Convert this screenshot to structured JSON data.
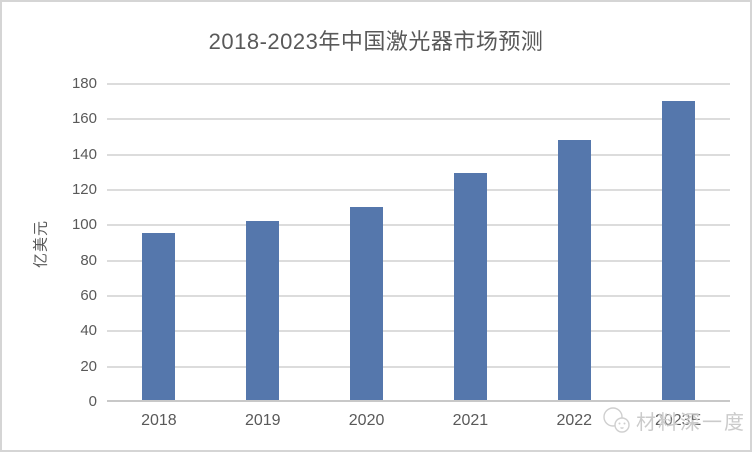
{
  "chart_data": {
    "type": "bar",
    "title": "2018-2023年中国激光器市场预测",
    "xlabel": "",
    "ylabel": "亿美元",
    "categories": [
      "2018",
      "2019",
      "2020",
      "2021",
      "2022",
      "2023E"
    ],
    "values": [
      94.5,
      101.5,
      109,
      128.5,
      147,
      169
    ],
    "ylim": [
      0,
      180
    ],
    "yticks": [
      0,
      20,
      40,
      60,
      80,
      100,
      120,
      140,
      160,
      180
    ],
    "grid": "horizontal",
    "legend_position": "none",
    "bar_color": "#5577ac"
  },
  "watermark": {
    "text": "材料深一度",
    "icon": "panda-logo-icon"
  },
  "colors": {
    "bar": "#5577ac",
    "gridline": "#dcdcdc",
    "axis_line": "#c8c8c8",
    "axis_text": "#595959",
    "title_text": "#595959",
    "watermark_text": "#cbcbcb",
    "frame_border": "#d5d5d5",
    "background": "#ffffff"
  }
}
